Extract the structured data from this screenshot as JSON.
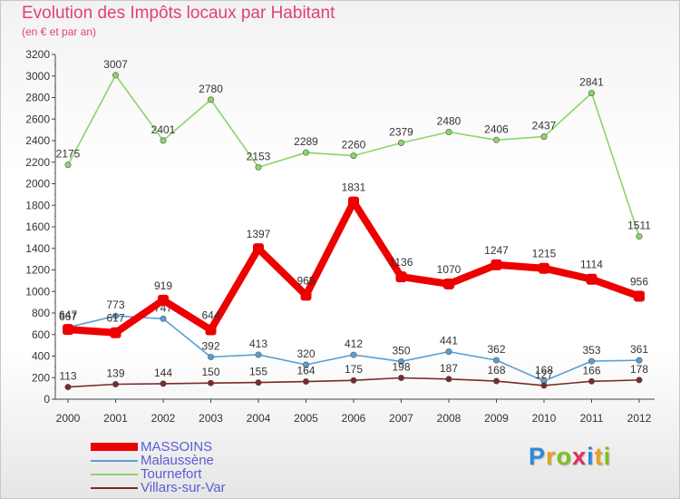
{
  "header": {
    "title": "Evolution des Impôts locaux par Habitant",
    "subtitle": "(en € et par an)"
  },
  "logo": {
    "letters": [
      "P",
      "r",
      "o",
      "x",
      "i",
      "t",
      "i"
    ],
    "colors": [
      "#2a8ad8",
      "#e8a020",
      "#80c020",
      "#e03060",
      "#2a8ad8",
      "#e8a020",
      "#80c020"
    ]
  },
  "chart_data": {
    "type": "line",
    "title": "Evolution des Impôts locaux par Habitant",
    "subtitle": "(en € et par an)",
    "xlabel": "",
    "ylabel": "",
    "categories": [
      "2000",
      "2001",
      "2002",
      "2003",
      "2004",
      "2005",
      "2006",
      "2007",
      "2008",
      "2009",
      "2010",
      "2011",
      "2012"
    ],
    "ylim": [
      0,
      3200
    ],
    "yticks": [
      0,
      200,
      400,
      600,
      800,
      1000,
      1200,
      1400,
      1600,
      1800,
      2000,
      2200,
      2400,
      2600,
      2800,
      3000,
      3200
    ],
    "grid": false,
    "legend_position": "bottom-left",
    "series": [
      {
        "name": "Tournefort",
        "color": "#8cd46a",
        "values": [
          2175,
          3007,
          2401,
          2780,
          2153,
          2289,
          2260,
          2379,
          2480,
          2406,
          2437,
          2841,
          1511
        ]
      },
      {
        "name": "Malaussène",
        "color": "#5a9fd4",
        "values": [
          667,
          773,
          747,
          392,
          413,
          320,
          412,
          350,
          441,
          362,
          168,
          353,
          361
        ]
      },
      {
        "name": "Villars-sur-Var",
        "color": "#7a2a2a",
        "values": [
          113,
          139,
          144,
          150,
          155,
          164,
          175,
          198,
          187,
          168,
          127,
          166,
          178
        ]
      },
      {
        "name": "MASSOINS",
        "color": "#ee0000",
        "values": [
          647,
          617,
          919,
          644,
          1397,
          965,
          1831,
          1136,
          1070,
          1247,
          1215,
          1114,
          956
        ]
      }
    ]
  },
  "legend": [
    {
      "name": "MASSOINS",
      "color": "#ee0000"
    },
    {
      "name": "Malaussène",
      "color": "#5a9fd4"
    },
    {
      "name": "Tournefort",
      "color": "#8cd46a"
    },
    {
      "name": "Villars-sur-Var",
      "color": "#7a2a2a"
    }
  ]
}
